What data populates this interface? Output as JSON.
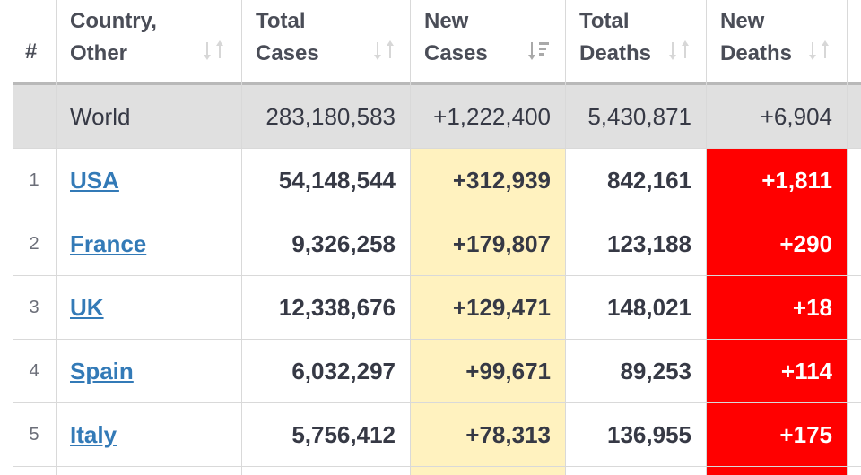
{
  "colors": {
    "new_cases_bg": "#fff2bf",
    "new_deaths_bg": "#ff0000",
    "link": "#337ab7",
    "world_row_bg": "#e0e0e0"
  },
  "headers": {
    "rank": "#",
    "country": "Country,\nOther",
    "total_cases": "Total\nCases",
    "new_cases": "New\nCases",
    "total_deaths": "Total\nDeaths",
    "new_deaths": "New\nDeaths"
  },
  "sorted_column": "new_cases",
  "world": {
    "country": "World",
    "total_cases": "283,180,583",
    "new_cases": "+1,222,400",
    "total_deaths": "5,430,871",
    "new_deaths": "+6,904"
  },
  "rows": [
    {
      "rank": "1",
      "country": "USA",
      "total_cases": "54,148,544",
      "new_cases": "+312,939",
      "total_deaths": "842,161",
      "new_deaths": "+1,811"
    },
    {
      "rank": "2",
      "country": "France",
      "total_cases": "9,326,258",
      "new_cases": "+179,807",
      "total_deaths": "123,188",
      "new_deaths": "+290"
    },
    {
      "rank": "3",
      "country": "UK",
      "total_cases": "12,338,676",
      "new_cases": "+129,471",
      "total_deaths": "148,021",
      "new_deaths": "+18"
    },
    {
      "rank": "4",
      "country": "Spain",
      "total_cases": "6,032,297",
      "new_cases": "+99,671",
      "total_deaths": "89,253",
      "new_deaths": "+114"
    },
    {
      "rank": "5",
      "country": "Italy",
      "total_cases": "5,756,412",
      "new_cases": "+78,313",
      "total_deaths": "136,955",
      "new_deaths": "+175"
    }
  ]
}
